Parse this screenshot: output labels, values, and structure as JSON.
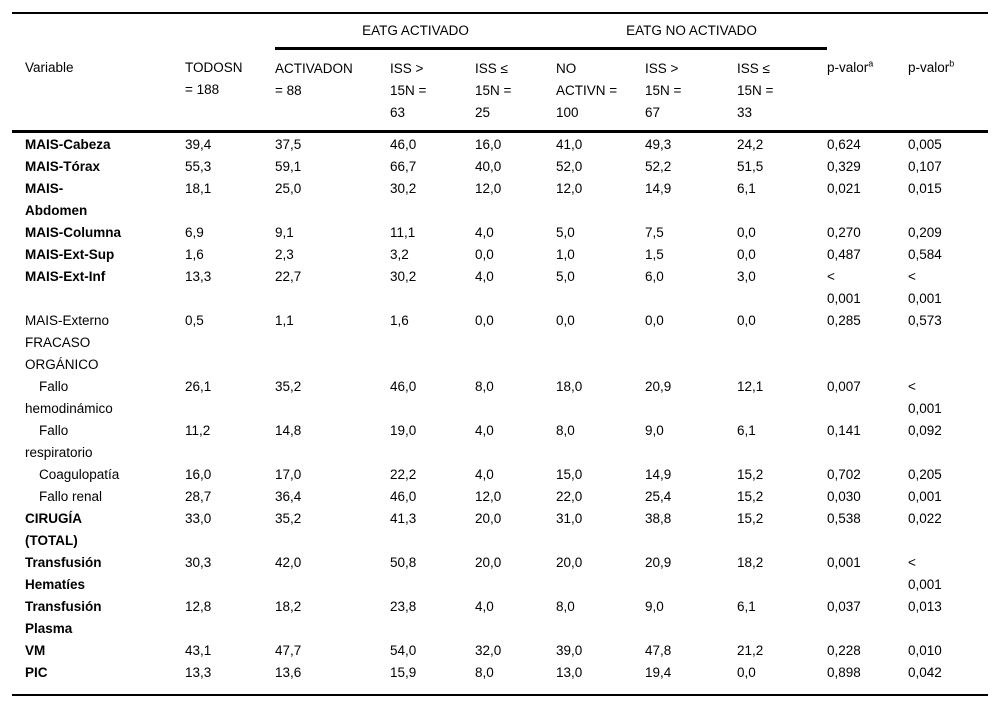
{
  "table": {
    "group_headers": [
      {
        "label": "EATG ACTIVADO"
      },
      {
        "label": "EATG NO ACTIVADO"
      }
    ],
    "columns": [
      {
        "label": "Variable"
      },
      {
        "label": "TODOSN\n= 188"
      },
      {
        "label": "ACTIVADON\n= 88"
      },
      {
        "label": "ISS >\n15N =\n63"
      },
      {
        "label": "ISS ≤\n15N =\n25"
      },
      {
        "label": "NO\nACTIVN =\n100"
      },
      {
        "label": "ISS >\n15N =\n67"
      },
      {
        "label": "ISS ≤\n15N =\n33"
      },
      {
        "label": "p-valor",
        "sup": "a"
      },
      {
        "label": "p-valor",
        "sup": "b"
      }
    ],
    "rows": [
      {
        "label": "MAIS-Cabeza",
        "style": "bold",
        "values": [
          "39,4",
          "37,5",
          "46,0",
          "16,0",
          "41,0",
          "49,3",
          "24,2",
          "0,624",
          "0,005"
        ]
      },
      {
        "label": "MAIS-Tórax",
        "style": "bold",
        "values": [
          "55,3",
          "59,1",
          "66,7",
          "40,0",
          "52,0",
          "52,2",
          "51,5",
          "0,329",
          "0,107"
        ]
      },
      {
        "label": "MAIS-\nAbdomen",
        "style": "bold",
        "values": [
          "18,1",
          "25,0",
          "30,2",
          "12,0",
          "12,0",
          "14,9",
          "6,1",
          "0,021",
          "0,015"
        ]
      },
      {
        "label": "MAIS-Columna",
        "style": "bold",
        "values": [
          "6,9",
          "9,1",
          "11,1",
          "4,0",
          "5,0",
          "7,5",
          "0,0",
          "0,270",
          "0,209"
        ]
      },
      {
        "label": "MAIS-Ext-Sup",
        "style": "bold",
        "values": [
          "1,6",
          "2,3",
          "3,2",
          "0,0",
          "1,0",
          "1,5",
          "0,0",
          "0,487",
          "0,584"
        ]
      },
      {
        "label": "MAIS-Ext-Inf",
        "style": "bold",
        "values": [
          "13,3",
          "22,7",
          "30,2",
          "4,0",
          "5,0",
          "6,0",
          "3,0",
          "<\n0,001",
          "<\n0,001"
        ]
      },
      {
        "label": "MAIS-Externo",
        "style": "plain",
        "values": [
          "0,5",
          "1,1",
          "1,6",
          "0,0",
          "0,0",
          "0,0",
          "0,0",
          "0,285",
          "0,573"
        ]
      },
      {
        "label": "FRACASO\nORGÁNICO",
        "style": "plain",
        "values": [
          "",
          "",
          "",
          "",
          "",
          "",
          "",
          "",
          ""
        ]
      },
      {
        "label": "Fallo\nhemodinámico",
        "style": "indent",
        "values": [
          "26,1",
          "35,2",
          "46,0",
          "8,0",
          "18,0",
          "20,9",
          "12,1",
          "0,007",
          "<\n0,001"
        ]
      },
      {
        "label": "Fallo\nrespiratorio",
        "style": "indent",
        "values": [
          "11,2",
          "14,8",
          "19,0",
          "4,0",
          "8,0",
          "9,0",
          "6,1",
          "0,141",
          "0,092"
        ]
      },
      {
        "label": "Coagulopatía",
        "style": "indent",
        "values": [
          "16,0",
          "17,0",
          "22,2",
          "4,0",
          "15,0",
          "14,9",
          "15,2",
          "0,702",
          "0,205"
        ]
      },
      {
        "label": "Fallo renal",
        "style": "indent",
        "values": [
          "28,7",
          "36,4",
          "46,0",
          "12,0",
          "22,0",
          "25,4",
          "15,2",
          "0,030",
          "0,001"
        ]
      },
      {
        "label": "CIRUGÍA\n(TOTAL)",
        "style": "bold",
        "values": [
          "33,0",
          "35,2",
          "41,3",
          "20,0",
          "31,0",
          "38,8",
          "15,2",
          "0,538",
          "0,022"
        ]
      },
      {
        "label": "Transfusión\nHematíes",
        "style": "bold",
        "values": [
          "30,3",
          "42,0",
          "50,8",
          "20,0",
          "20,0",
          "20,9",
          "18,2",
          "0,001",
          "<\n0,001"
        ]
      },
      {
        "label": "Transfusión\nPlasma",
        "style": "bold",
        "values": [
          "12,8",
          "18,2",
          "23,8",
          "4,0",
          "8,0",
          "9,0",
          "6,1",
          "0,037",
          "0,013"
        ]
      },
      {
        "label": "VM",
        "style": "bold",
        "values": [
          "43,1",
          "47,7",
          "54,0",
          "32,0",
          "39,0",
          "47,8",
          "21,2",
          "0,228",
          "0,010"
        ]
      },
      {
        "label": "PIC",
        "style": "bold",
        "values": [
          "13,3",
          "13,6",
          "15,9",
          "8,0",
          "13,0",
          "19,4",
          "0,0",
          "0,898",
          "0,042"
        ]
      }
    ]
  }
}
